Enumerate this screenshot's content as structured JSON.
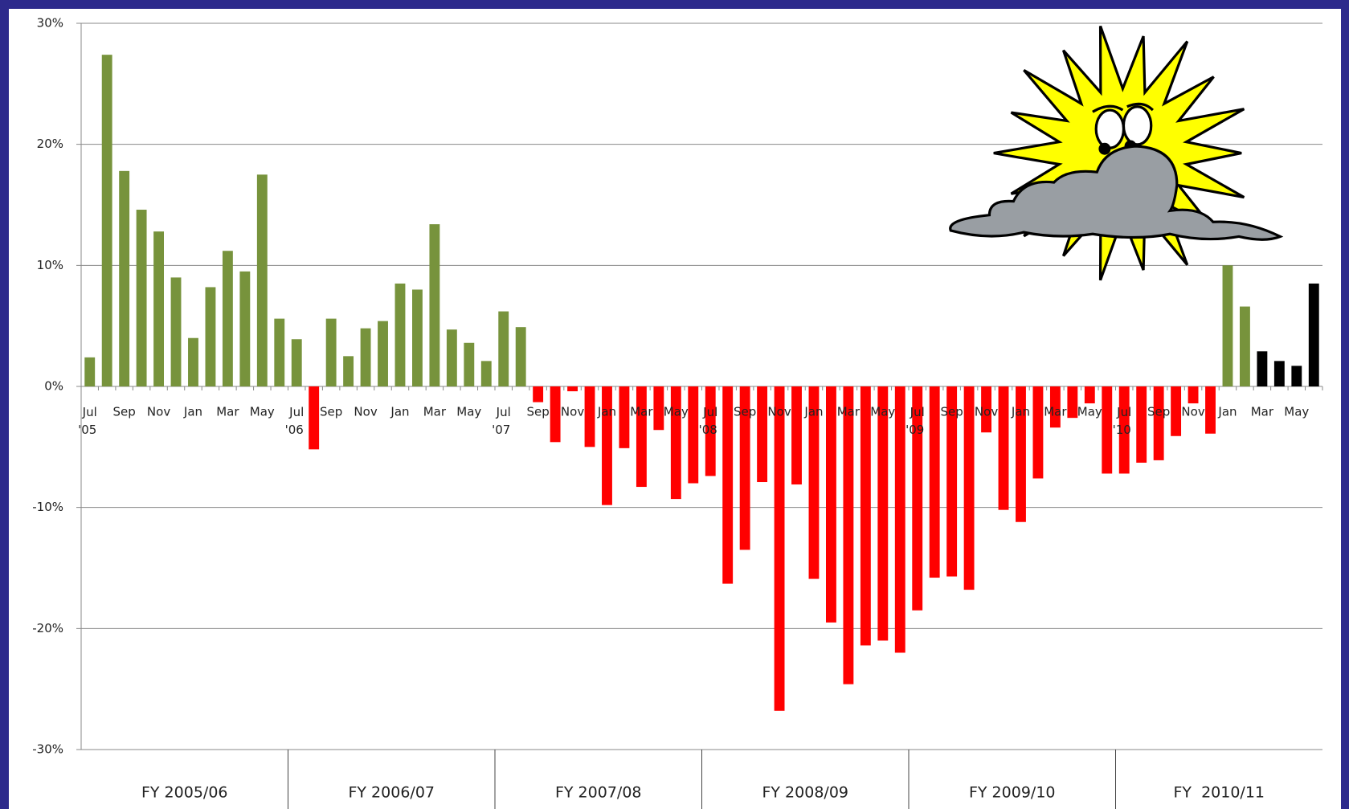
{
  "chart_data": {
    "type": "bar",
    "categories": [
      "Jul '05",
      null,
      "Sep",
      null,
      "Nov",
      null,
      "Jan",
      null,
      "Mar",
      null,
      "May",
      null,
      "Jul '06",
      null,
      "Sep",
      null,
      "Nov",
      null,
      "Jan",
      null,
      "Mar",
      null,
      "May",
      null,
      "Jul '07",
      null,
      "Sep",
      null,
      "Nov",
      null,
      "Jan",
      null,
      "Mar",
      null,
      "May",
      null,
      "Jul '08",
      null,
      "Sep",
      null,
      "Nov",
      null,
      "Jan",
      null,
      "Mar",
      null,
      "May",
      null,
      "Jul '09",
      null,
      "Sep",
      null,
      "Nov",
      null,
      "Jan",
      null,
      "Mar",
      null,
      "May",
      null,
      "Jul '10",
      null,
      "Sep",
      null,
      "Nov",
      null,
      "Jan",
      null,
      "Mar",
      null,
      "May",
      null
    ],
    "values": [
      2.4,
      27.4,
      17.8,
      14.6,
      12.8,
      9.0,
      4.0,
      8.2,
      11.2,
      9.5,
      17.5,
      5.6,
      3.9,
      -5.2,
      5.6,
      2.5,
      4.8,
      5.4,
      8.5,
      8.0,
      13.4,
      4.7,
      3.6,
      2.1,
      6.2,
      4.9,
      -1.3,
      -4.6,
      -0.4,
      -5.0,
      -9.8,
      -5.1,
      -8.3,
      -3.6,
      -9.3,
      -8.0,
      -7.4,
      -16.3,
      -13.5,
      -7.9,
      -26.8,
      -8.1,
      -15.9,
      -19.5,
      -24.6,
      -21.4,
      -21.0,
      -22.0,
      -18.5,
      -15.8,
      -15.7,
      -16.8,
      -3.8,
      -10.2,
      -11.2,
      -7.6,
      -3.4,
      -2.6,
      -1.4,
      -7.2,
      -7.2,
      -6.3,
      -6.1,
      -4.1,
      -1.4,
      -3.9,
      10.0,
      6.6,
      2.9,
      2.1,
      1.7,
      8.5
    ],
    "colors": [
      "#77933c",
      "#77933c",
      "#77933c",
      "#77933c",
      "#77933c",
      "#77933c",
      "#77933c",
      "#77933c",
      "#77933c",
      "#77933c",
      "#77933c",
      "#77933c",
      "#77933c",
      "#ff0000",
      "#77933c",
      "#77933c",
      "#77933c",
      "#77933c",
      "#77933c",
      "#77933c",
      "#77933c",
      "#77933c",
      "#77933c",
      "#77933c",
      "#77933c",
      "#77933c",
      "#ff0000",
      "#ff0000",
      "#ff0000",
      "#ff0000",
      "#ff0000",
      "#ff0000",
      "#ff0000",
      "#ff0000",
      "#ff0000",
      "#ff0000",
      "#ff0000",
      "#ff0000",
      "#ff0000",
      "#ff0000",
      "#ff0000",
      "#ff0000",
      "#ff0000",
      "#ff0000",
      "#ff0000",
      "#ff0000",
      "#ff0000",
      "#ff0000",
      "#ff0000",
      "#ff0000",
      "#ff0000",
      "#ff0000",
      "#ff0000",
      "#ff0000",
      "#ff0000",
      "#ff0000",
      "#ff0000",
      "#ff0000",
      "#ff0000",
      "#ff0000",
      "#ff0000",
      "#ff0000",
      "#ff0000",
      "#ff0000",
      "#ff0000",
      "#ff0000",
      "#77933c",
      "#77933c",
      "#000000",
      "#000000",
      "#000000",
      "#000000"
    ],
    "ylim": [
      -30,
      30
    ],
    "yticks": [
      {
        "value": -30,
        "label": "-30%"
      },
      {
        "value": -20,
        "label": "-20%"
      },
      {
        "value": -10,
        "label": "-10%"
      },
      {
        "value": 0,
        "label": "0%"
      },
      {
        "value": 10,
        "label": "10%"
      },
      {
        "value": 20,
        "label": "20%"
      },
      {
        "value": 30,
        "label": "30%"
      }
    ],
    "grid": true,
    "fiscal_years": [
      "FY 2005/06",
      "FY 2006/07",
      "FY 2007/08",
      "FY 2008/09",
      "FY 2009/10",
      "FY  2010/11"
    ]
  }
}
